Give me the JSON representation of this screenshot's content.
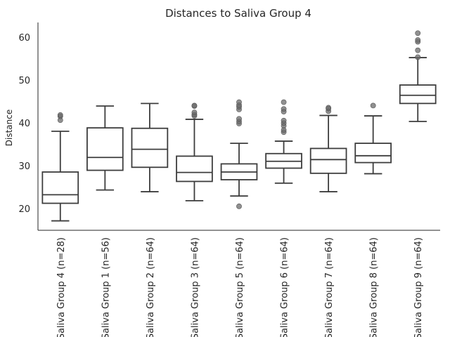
{
  "chart_data": {
    "type": "box",
    "title": "Distances to Saliva Group 4",
    "xlabel": "",
    "ylabel": "Distance",
    "ylim": [
      15,
      63.5
    ],
    "yticks": [
      20,
      30,
      40,
      50,
      60
    ],
    "grid": false,
    "categories": [
      "Saliva Group 4 (n=28)",
      "Saliva Group 1 (n=56)",
      "Saliva Group 2 (n=64)",
      "Saliva Group 3 (n=64)",
      "Saliva Group 5 (n=64)",
      "Saliva Group 6 (n=64)",
      "Saliva Group 7 (n=64)",
      "Saliva Group 8 (n=64)",
      "Saliva Group 9 (n=64)"
    ],
    "boxes": [
      {
        "whislo": 17.2,
        "q1": 21.3,
        "med": 23.3,
        "q3": 28.6,
        "whishi": 38.1,
        "fliers": [
          40.7,
          41.6,
          41.9
        ]
      },
      {
        "whislo": 24.4,
        "q1": 29.0,
        "med": 32.0,
        "q3": 38.9,
        "whishi": 44.0,
        "fliers": []
      },
      {
        "whislo": 24.0,
        "q1": 29.7,
        "med": 33.9,
        "q3": 38.8,
        "whishi": 44.6,
        "fliers": []
      },
      {
        "whislo": 21.9,
        "q1": 26.4,
        "med": 28.5,
        "q3": 32.3,
        "whishi": 40.9,
        "fliers": [
          41.7,
          42.0,
          42.5,
          44.0,
          44.1
        ]
      },
      {
        "whislo": 23.0,
        "q1": 26.8,
        "med": 28.6,
        "q3": 30.5,
        "whishi": 35.3,
        "fliers": [
          20.6,
          39.9,
          40.4,
          41.0,
          43.2,
          43.8,
          44.2,
          44.9
        ]
      },
      {
        "whislo": 26.0,
        "q1": 29.5,
        "med": 31.1,
        "q3": 32.9,
        "whishi": 35.8,
        "fliers": [
          37.9,
          38.4,
          39.4,
          40.0,
          40.6,
          42.7,
          43.3,
          44.9
        ]
      },
      {
        "whislo": 24.0,
        "q1": 28.3,
        "med": 31.5,
        "q3": 34.1,
        "whishi": 41.8,
        "fliers": [
          42.8,
          43.4,
          43.6
        ]
      },
      {
        "whislo": 28.2,
        "q1": 30.8,
        "med": 32.4,
        "q3": 35.3,
        "whishi": 41.7,
        "fliers": [
          44.1
        ]
      },
      {
        "whislo": 40.4,
        "q1": 44.6,
        "med": 46.5,
        "q3": 48.9,
        "whishi": 55.3,
        "fliers": [
          55.4,
          57.0,
          59.0,
          59.4,
          61.0
        ]
      }
    ]
  }
}
